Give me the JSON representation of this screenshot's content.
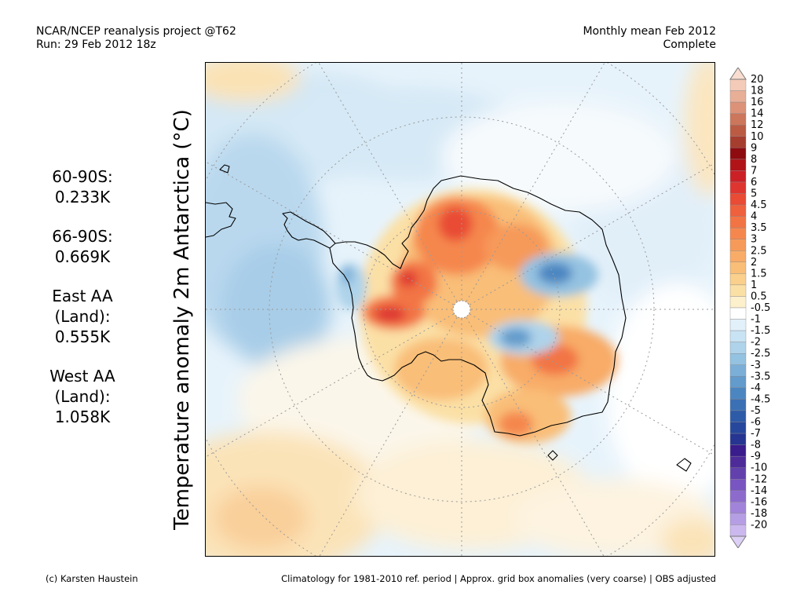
{
  "header": {
    "project": "NCAR/NCEP reanalysis project @T62",
    "run": "Run: 29 Feb 2012 18z",
    "period": "Monthly mean Feb 2012",
    "status": "Complete"
  },
  "title": "Temperature anomaly 2m Antarctica (°C)",
  "stats": [
    {
      "lines": [
        "60-90S:",
        "0.233K"
      ]
    },
    {
      "lines": [
        "66-90S:",
        "0.669K"
      ]
    },
    {
      "lines": [
        "East AA",
        "(Land):",
        "0.555K"
      ]
    },
    {
      "lines": [
        "West AA",
        "(Land):",
        "1.058K"
      ]
    }
  ],
  "colorbar": {
    "levels": [
      {
        "label": "20",
        "color": "#f4cbb8"
      },
      {
        "label": "18",
        "color": "#e8ae96"
      },
      {
        "label": "16",
        "color": "#dc9278"
      },
      {
        "label": "14",
        "color": "#cc765c"
      },
      {
        "label": "12",
        "color": "#bb5b44"
      },
      {
        "label": "10",
        "color": "#a63e2f"
      },
      {
        "label": "9",
        "color": "#8e0b10"
      },
      {
        "label": "8",
        "color": "#b01419"
      },
      {
        "label": "7",
        "color": "#cc2027"
      },
      {
        "label": "6",
        "color": "#de3530"
      },
      {
        "label": "5",
        "color": "#e94b35"
      },
      {
        "label": "4.5",
        "color": "#ef603c"
      },
      {
        "label": "4",
        "color": "#f27444"
      },
      {
        "label": "3.5",
        "color": "#f5874e"
      },
      {
        "label": "3",
        "color": "#f69a5a"
      },
      {
        "label": "2.5",
        "color": "#f8ac68"
      },
      {
        "label": "2",
        "color": "#f9be78"
      },
      {
        "label": "1.5",
        "color": "#fad08c"
      },
      {
        "label": "1",
        "color": "#fbe0a6"
      },
      {
        "label": "0.5",
        "color": "#fdf0cc"
      },
      {
        "label": "-0.5",
        "color": "#ffffff"
      },
      {
        "label": "-1",
        "color": "#e2f0fa"
      },
      {
        "label": "-1.5",
        "color": "#c8e3f3"
      },
      {
        "label": "-2",
        "color": "#aed3ea"
      },
      {
        "label": "-2.5",
        "color": "#94c2e1"
      },
      {
        "label": "-3",
        "color": "#7bafd7"
      },
      {
        "label": "-3.5",
        "color": "#629bcc"
      },
      {
        "label": "-4",
        "color": "#4c86c1"
      },
      {
        "label": "-4.5",
        "color": "#3b70b5"
      },
      {
        "label": "-5",
        "color": "#2e5ba8"
      },
      {
        "label": "-6",
        "color": "#26479c"
      },
      {
        "label": "-7",
        "color": "#263591"
      },
      {
        "label": "-8",
        "color": "#3a1c8c"
      },
      {
        "label": "-9",
        "color": "#4d2c9a"
      },
      {
        "label": "-10",
        "color": "#6341ad"
      },
      {
        "label": "-12",
        "color": "#7855c0"
      },
      {
        "label": "-14",
        "color": "#8c6bcd"
      },
      {
        "label": "-16",
        "color": "#a184d9"
      },
      {
        "label": "-18",
        "color": "#b69ee4"
      },
      {
        "label": "-20",
        "color": "#cbb8ee"
      }
    ],
    "top_cap_color": "#f8ddd0",
    "bottom_cap_color": "#ddd0f6"
  },
  "footer": {
    "credit": "(c) Karsten Haustein",
    "note": "Climatology for 1981-2010 ref. period | Approx. grid box anomalies (very coarse) | OBS adjusted"
  }
}
